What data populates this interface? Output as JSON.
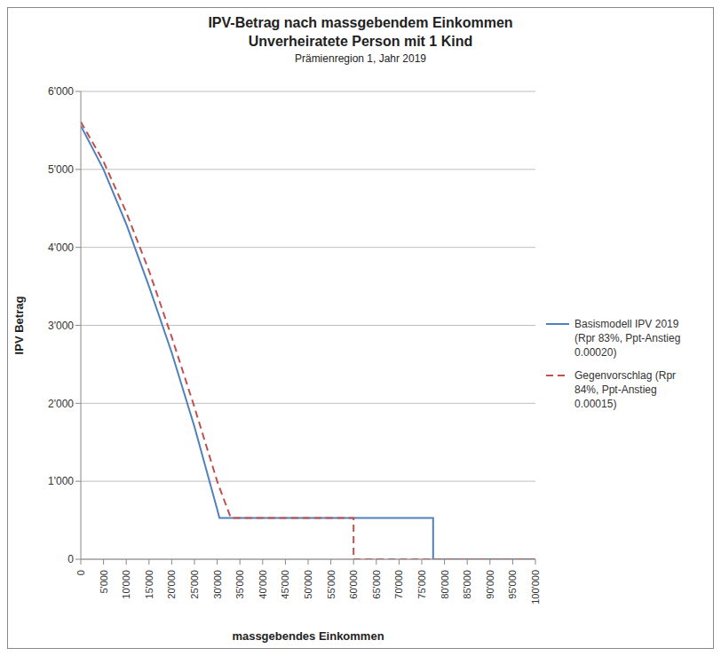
{
  "chart_data": {
    "type": "line",
    "title": "IPV-Betrag nach massgebendem Einkommen\nUnverheiratete Person mit 1 Kind",
    "subtitle": "Prämienregion 1, Jahr 2019",
    "x_label": "massgebendes Einkommen",
    "y_label": "IPV Betrag",
    "x": [
      0,
      5000,
      10000,
      15000,
      20000,
      25000,
      30000,
      30500,
      33000,
      60000,
      60000,
      77500,
      77500,
      100000
    ],
    "series": [
      {
        "name": "Basismodell IPV 2019 (Rpr 83%, Ppt-Anstieg 0.00020)",
        "color": "#4f81bd",
        "line_style": "solid",
        "values": [
          5560,
          5000,
          4300,
          3500,
          2650,
          1700,
          640,
          530,
          530,
          530,
          530,
          530,
          0,
          0
        ]
      },
      {
        "name": "Gegenvorschlag (Rpr 84%, Ppt-Anstieg 0.00015)",
        "color": "#c0504d",
        "line_style": "dashed",
        "values": [
          5610,
          5100,
          4450,
          3700,
          2850,
          1950,
          1000,
          920,
          530,
          530,
          0,
          0,
          0,
          0
        ]
      }
    ],
    "xlim": [
      0,
      100000
    ],
    "xticks": [
      0,
      {
        "value": 5000,
        "label": "5'000"
      },
      {
        "value": 10000,
        "label": "10'000"
      },
      {
        "value": 15000,
        "label": "15'000"
      },
      {
        "value": 20000,
        "label": "20'000"
      },
      {
        "value": 25000,
        "label": "25'000"
      },
      {
        "value": 30000,
        "label": "30'000"
      },
      {
        "value": 35000,
        "label": "35'000"
      },
      {
        "value": 40000,
        "label": "40'000"
      },
      {
        "value": 45000,
        "label": "45'000"
      },
      {
        "value": 50000,
        "label": "50'000"
      },
      {
        "value": 55000,
        "label": "55'000"
      },
      {
        "value": 60000,
        "label": "60'000"
      },
      {
        "value": 65000,
        "label": "65'000"
      },
      {
        "value": 70000,
        "label": "70'000"
      },
      {
        "value": 75000,
        "label": "75'000"
      },
      {
        "value": 80000,
        "label": "80'000"
      },
      {
        "value": 85000,
        "label": "85'000"
      },
      {
        "value": 90000,
        "label": "90'000"
      },
      {
        "value": 95000,
        "label": "95'000"
      },
      {
        "value": 100000,
        "label": "100'000"
      }
    ],
    "ylim": [
      0,
      6000
    ],
    "yticks": [
      0,
      {
        "value": 1000,
        "label": "1'000"
      },
      {
        "value": 2000,
        "label": "2'000"
      },
      {
        "value": 3000,
        "label": "3'000"
      },
      {
        "value": 4000,
        "label": "4'000"
      },
      {
        "value": 5000,
        "label": "5'000"
      },
      {
        "value": 6000,
        "label": "6'000"
      }
    ],
    "grid": true,
    "legend": "right"
  }
}
